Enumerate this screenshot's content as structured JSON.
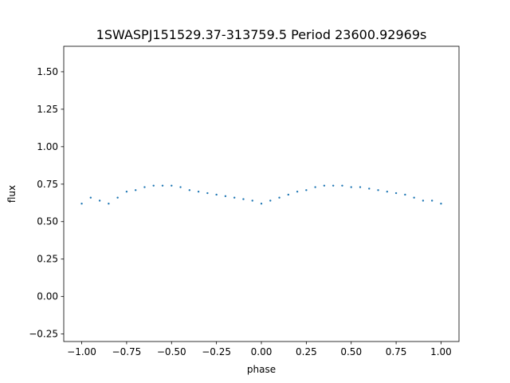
{
  "chart_data": {
    "type": "scatter",
    "title": "1SWASPJ151529.37-313759.5 Period 23600.92969s",
    "xlabel": "phase",
    "ylabel": "flux",
    "xlim": [
      -1.1,
      1.1
    ],
    "ylim": [
      -0.3,
      1.67
    ],
    "x_ticks": [
      "−1.00",
      "−0.75",
      "−0.50",
      "−0.25",
      "0.00",
      "0.25",
      "0.50",
      "0.75",
      "1.00"
    ],
    "x_tick_values": [
      -1.0,
      -0.75,
      -0.5,
      -0.25,
      0.0,
      0.25,
      0.5,
      0.75,
      1.0
    ],
    "y_ticks": [
      "−0.25",
      "0.00",
      "0.25",
      "0.50",
      "0.75",
      "1.00",
      "1.25",
      "1.50"
    ],
    "y_tick_values": [
      -0.25,
      0.0,
      0.25,
      0.5,
      0.75,
      1.0,
      1.25,
      1.5
    ],
    "grid": false,
    "legend": "none",
    "series": [
      {
        "color": "#1f77b4",
        "phase_range": [
          -1.0,
          1.0
        ],
        "points": [
          [
            -1.0,
            0.62
          ],
          [
            -0.95,
            0.66
          ],
          [
            -0.9,
            0.64
          ],
          [
            -0.85,
            0.62
          ],
          [
            -0.8,
            0.66
          ],
          [
            -0.75,
            0.7
          ],
          [
            -0.7,
            0.71
          ],
          [
            -0.65,
            0.73
          ],
          [
            -0.6,
            0.74
          ],
          [
            -0.55,
            0.74
          ],
          [
            -0.5,
            0.74
          ],
          [
            -0.45,
            0.73
          ],
          [
            -0.4,
            0.71
          ],
          [
            -0.35,
            0.7
          ],
          [
            -0.3,
            0.69
          ],
          [
            -0.25,
            0.68
          ],
          [
            -0.2,
            0.67
          ],
          [
            -0.15,
            0.66
          ],
          [
            -0.1,
            0.65
          ],
          [
            -0.05,
            0.64
          ],
          [
            0.0,
            0.62
          ],
          [
            0.05,
            0.64
          ],
          [
            0.1,
            0.66
          ],
          [
            0.15,
            0.68
          ],
          [
            0.2,
            0.7
          ],
          [
            0.25,
            0.71
          ],
          [
            0.3,
            0.73
          ],
          [
            0.35,
            0.74
          ],
          [
            0.4,
            0.74
          ],
          [
            0.45,
            0.74
          ],
          [
            0.5,
            0.73
          ],
          [
            0.55,
            0.73
          ],
          [
            0.6,
            0.72
          ],
          [
            0.65,
            0.71
          ],
          [
            0.7,
            0.7
          ],
          [
            0.75,
            0.69
          ],
          [
            0.8,
            0.68
          ],
          [
            0.85,
            0.66
          ],
          [
            0.9,
            0.64
          ],
          [
            0.95,
            0.64
          ],
          [
            1.0,
            0.62
          ]
        ]
      }
    ]
  }
}
